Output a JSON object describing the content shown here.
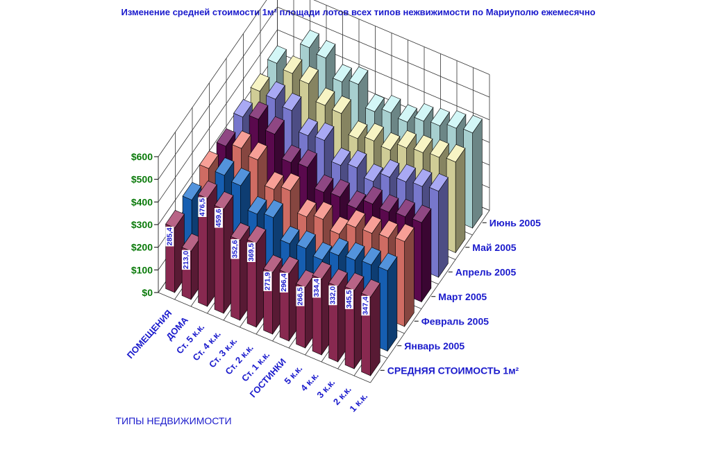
{
  "chart_data": {
    "type": "bar",
    "variant": "3d-column",
    "title": "Изменение средней стоимости 1м² площади лотов всех типов нежвижимости по Мариуполю ежемесячно",
    "xlabel": "ТИПЫ НЕДВИЖИМОСТИ",
    "categories": [
      "ПОМЕЩЕНИЯ",
      "ДОМА",
      "Ст. 5  к.к.",
      "Ст. 4  к.к.",
      "Ст. 3  к.к.",
      "Ст. 2  к.к.",
      "Ст. 1  к.к.",
      "ГОСТИНКИ",
      "5  к.к.",
      "4  к.к.",
      "3  к.к.",
      "2  к.к.",
      "1 к.к."
    ],
    "y_ticks": [
      "$0",
      "$100",
      "$200",
      "$300",
      "$400",
      "$500",
      "$600"
    ],
    "ylim": [
      0,
      600
    ],
    "grid": true,
    "series": [
      {
        "name": "СРЕДНЯЯ СТОИМОСТЬ 1м²",
        "color": "#a0305e",
        "labels": [
          "285,4",
          "213,0",
          "476,5",
          "459,6",
          "352,6",
          "369,5",
          "271,9",
          "296,4",
          "266,5",
          "334,4",
          "332,0",
          "345,5",
          "347,4"
        ],
        "values": [
          285.4,
          213.0,
          476.5,
          459.6,
          352.6,
          369.5,
          271.9,
          296.4,
          266.5,
          334.4,
          332.0,
          345.5,
          347.4
        ]
      },
      {
        "name": "Январь 2005",
        "color": "#1a6fd0",
        "values": [
          300,
          250,
          470,
          455,
          360,
          375,
          290,
          300,
          280,
          330,
          340,
          350,
          355
        ]
      },
      {
        "name": "Февраль 2005",
        "color": "#f47f74",
        "values": [
          330,
          265,
          480,
          460,
          360,
          385,
          300,
          320,
          285,
          345,
          350,
          360,
          375
        ]
      },
      {
        "name": "Март 2005",
        "color": "#6a0a5a",
        "values": [
          320,
          270,
          500,
          465,
          370,
          380,
          300,
          310,
          290,
          340,
          335,
          345,
          350
        ]
      },
      {
        "name": "Апрель 2005",
        "color": "#8c8cf0",
        "values": [
          340,
          300,
          480,
          460,
          380,
          390,
          310,
          330,
          300,
          350,
          360,
          370,
          380
        ]
      },
      {
        "name": "Май 2005",
        "color": "#f4f0b0",
        "values": [
          345,
          330,
          485,
          470,
          405,
          400,
          320,
          340,
          330,
          370,
          380,
          390,
          400
        ]
      },
      {
        "name": "Июнь 2005",
        "color": "#c4f4f4",
        "values": [
          360,
          335,
          490,
          475,
          400,
          420,
          330,
          355,
          345,
          380,
          390,
          410,
          420
        ]
      }
    ]
  }
}
